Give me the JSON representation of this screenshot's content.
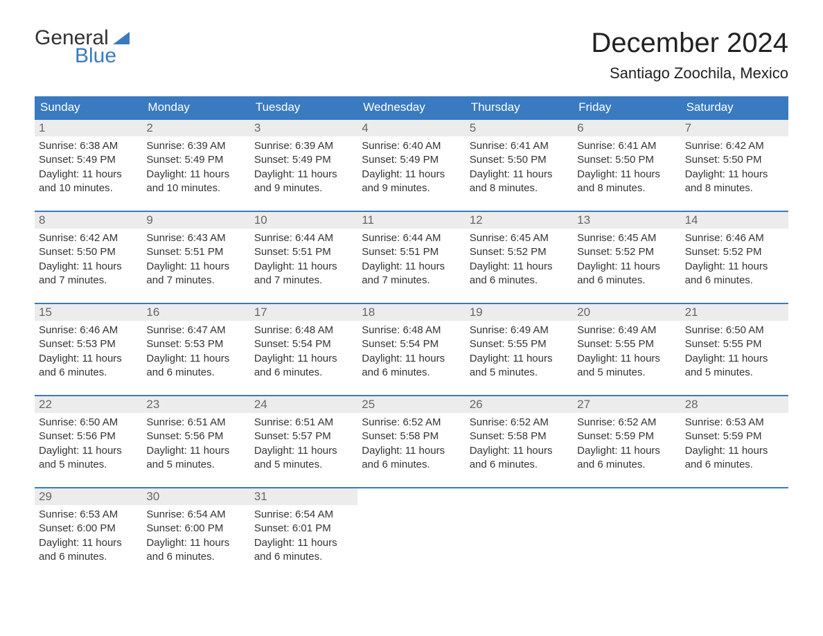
{
  "meta": {
    "logo_general": "General",
    "logo_blue": "Blue",
    "month_title": "December 2024",
    "location": "Santiago Zoochila, Mexico"
  },
  "colors": {
    "header_bg": "#3a7ac0",
    "header_text": "#ffffff",
    "daynum_bg": "#ececec",
    "daynum_text": "#666666",
    "body_text": "#333333",
    "week_border": "#3a7ac0",
    "page_bg": "#ffffff",
    "logo_blue": "#3a7ac0"
  },
  "typography": {
    "month_title_fontsize": 40,
    "location_fontsize": 22,
    "dow_fontsize": 17,
    "daynum_fontsize": 17,
    "body_fontsize": 15
  },
  "dow": [
    "Sunday",
    "Monday",
    "Tuesday",
    "Wednesday",
    "Thursday",
    "Friday",
    "Saturday"
  ],
  "weeks": [
    [
      {
        "n": "1",
        "sr": "Sunrise: 6:38 AM",
        "ss": "Sunset: 5:49 PM",
        "dl": "Daylight: 11 hours and 10 minutes."
      },
      {
        "n": "2",
        "sr": "Sunrise: 6:39 AM",
        "ss": "Sunset: 5:49 PM",
        "dl": "Daylight: 11 hours and 10 minutes."
      },
      {
        "n": "3",
        "sr": "Sunrise: 6:39 AM",
        "ss": "Sunset: 5:49 PM",
        "dl": "Daylight: 11 hours and 9 minutes."
      },
      {
        "n": "4",
        "sr": "Sunrise: 6:40 AM",
        "ss": "Sunset: 5:49 PM",
        "dl": "Daylight: 11 hours and 9 minutes."
      },
      {
        "n": "5",
        "sr": "Sunrise: 6:41 AM",
        "ss": "Sunset: 5:50 PM",
        "dl": "Daylight: 11 hours and 8 minutes."
      },
      {
        "n": "6",
        "sr": "Sunrise: 6:41 AM",
        "ss": "Sunset: 5:50 PM",
        "dl": "Daylight: 11 hours and 8 minutes."
      },
      {
        "n": "7",
        "sr": "Sunrise: 6:42 AM",
        "ss": "Sunset: 5:50 PM",
        "dl": "Daylight: 11 hours and 8 minutes."
      }
    ],
    [
      {
        "n": "8",
        "sr": "Sunrise: 6:42 AM",
        "ss": "Sunset: 5:50 PM",
        "dl": "Daylight: 11 hours and 7 minutes."
      },
      {
        "n": "9",
        "sr": "Sunrise: 6:43 AM",
        "ss": "Sunset: 5:51 PM",
        "dl": "Daylight: 11 hours and 7 minutes."
      },
      {
        "n": "10",
        "sr": "Sunrise: 6:44 AM",
        "ss": "Sunset: 5:51 PM",
        "dl": "Daylight: 11 hours and 7 minutes."
      },
      {
        "n": "11",
        "sr": "Sunrise: 6:44 AM",
        "ss": "Sunset: 5:51 PM",
        "dl": "Daylight: 11 hours and 7 minutes."
      },
      {
        "n": "12",
        "sr": "Sunrise: 6:45 AM",
        "ss": "Sunset: 5:52 PM",
        "dl": "Daylight: 11 hours and 6 minutes."
      },
      {
        "n": "13",
        "sr": "Sunrise: 6:45 AM",
        "ss": "Sunset: 5:52 PM",
        "dl": "Daylight: 11 hours and 6 minutes."
      },
      {
        "n": "14",
        "sr": "Sunrise: 6:46 AM",
        "ss": "Sunset: 5:52 PM",
        "dl": "Daylight: 11 hours and 6 minutes."
      }
    ],
    [
      {
        "n": "15",
        "sr": "Sunrise: 6:46 AM",
        "ss": "Sunset: 5:53 PM",
        "dl": "Daylight: 11 hours and 6 minutes."
      },
      {
        "n": "16",
        "sr": "Sunrise: 6:47 AM",
        "ss": "Sunset: 5:53 PM",
        "dl": "Daylight: 11 hours and 6 minutes."
      },
      {
        "n": "17",
        "sr": "Sunrise: 6:48 AM",
        "ss": "Sunset: 5:54 PM",
        "dl": "Daylight: 11 hours and 6 minutes."
      },
      {
        "n": "18",
        "sr": "Sunrise: 6:48 AM",
        "ss": "Sunset: 5:54 PM",
        "dl": "Daylight: 11 hours and 6 minutes."
      },
      {
        "n": "19",
        "sr": "Sunrise: 6:49 AM",
        "ss": "Sunset: 5:55 PM",
        "dl": "Daylight: 11 hours and 5 minutes."
      },
      {
        "n": "20",
        "sr": "Sunrise: 6:49 AM",
        "ss": "Sunset: 5:55 PM",
        "dl": "Daylight: 11 hours and 5 minutes."
      },
      {
        "n": "21",
        "sr": "Sunrise: 6:50 AM",
        "ss": "Sunset: 5:55 PM",
        "dl": "Daylight: 11 hours and 5 minutes."
      }
    ],
    [
      {
        "n": "22",
        "sr": "Sunrise: 6:50 AM",
        "ss": "Sunset: 5:56 PM",
        "dl": "Daylight: 11 hours and 5 minutes."
      },
      {
        "n": "23",
        "sr": "Sunrise: 6:51 AM",
        "ss": "Sunset: 5:56 PM",
        "dl": "Daylight: 11 hours and 5 minutes."
      },
      {
        "n": "24",
        "sr": "Sunrise: 6:51 AM",
        "ss": "Sunset: 5:57 PM",
        "dl": "Daylight: 11 hours and 5 minutes."
      },
      {
        "n": "25",
        "sr": "Sunrise: 6:52 AM",
        "ss": "Sunset: 5:58 PM",
        "dl": "Daylight: 11 hours and 6 minutes."
      },
      {
        "n": "26",
        "sr": "Sunrise: 6:52 AM",
        "ss": "Sunset: 5:58 PM",
        "dl": "Daylight: 11 hours and 6 minutes."
      },
      {
        "n": "27",
        "sr": "Sunrise: 6:52 AM",
        "ss": "Sunset: 5:59 PM",
        "dl": "Daylight: 11 hours and 6 minutes."
      },
      {
        "n": "28",
        "sr": "Sunrise: 6:53 AM",
        "ss": "Sunset: 5:59 PM",
        "dl": "Daylight: 11 hours and 6 minutes."
      }
    ],
    [
      {
        "n": "29",
        "sr": "Sunrise: 6:53 AM",
        "ss": "Sunset: 6:00 PM",
        "dl": "Daylight: 11 hours and 6 minutes."
      },
      {
        "n": "30",
        "sr": "Sunrise: 6:54 AM",
        "ss": "Sunset: 6:00 PM",
        "dl": "Daylight: 11 hours and 6 minutes."
      },
      {
        "n": "31",
        "sr": "Sunrise: 6:54 AM",
        "ss": "Sunset: 6:01 PM",
        "dl": "Daylight: 11 hours and 6 minutes."
      },
      null,
      null,
      null,
      null
    ]
  ]
}
